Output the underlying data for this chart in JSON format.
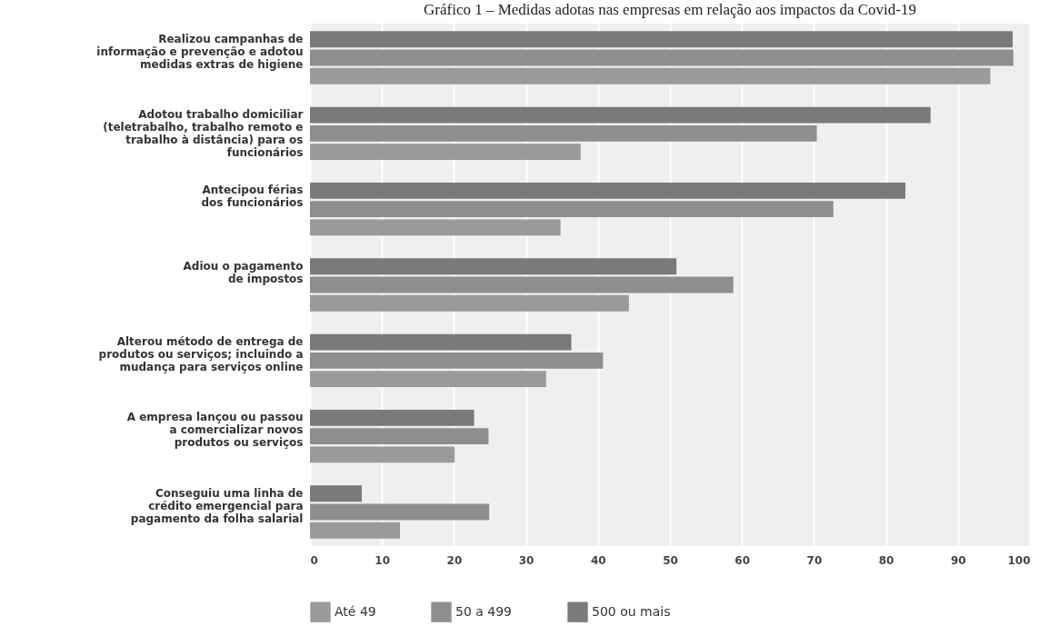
{
  "chart_data": {
    "type": "bar",
    "orientation": "horizontal",
    "title": "Gráfico 1 – Medidas adotas nas empresas em relação aos impactos da Covid-19",
    "categories": [
      "Realizou campanhas de\ninformação e prevenção e adotou\nmedidas extras de higiene",
      "Adotou trabalho domiciliar\n(teletrabalho, trabalho remoto e\ntrabalho à distância) para os\nfuncionários",
      "Antecipou férias\ndos funcionários",
      "Adiou o pagamento\nde impostos",
      "Alterou método de entrega de\nprodutos ou serviços; incluindo a\nmudança para serviços online",
      "A empresa lançou ou passou\na comercializar novos\nprodutos ou serviços",
      "Conseguiu uma linha de\ncrédito emergencial para\npagamento da folha salarial"
    ],
    "series": [
      {
        "name": "Até 49",
        "color": "#9a9a9a",
        "values": [
          94.5,
          37.6,
          34.8,
          44.3,
          32.8,
          20.1,
          12.5
        ]
      },
      {
        "name": "50 a 499",
        "color": "#8e8e8e",
        "values": [
          97.7,
          70.4,
          72.7,
          58.8,
          40.7,
          24.8,
          24.9
        ]
      },
      {
        "name": "500 ou mais",
        "color": "#7a7a7a",
        "values": [
          97.6,
          86.2,
          82.7,
          50.9,
          36.3,
          22.8,
          7.2
        ]
      }
    ],
    "xlim": [
      0,
      100
    ],
    "xticks": [
      0,
      10,
      20,
      30,
      40,
      50,
      60,
      70,
      80,
      90,
      100
    ],
    "grid": "x",
    "legend": "bottom"
  }
}
